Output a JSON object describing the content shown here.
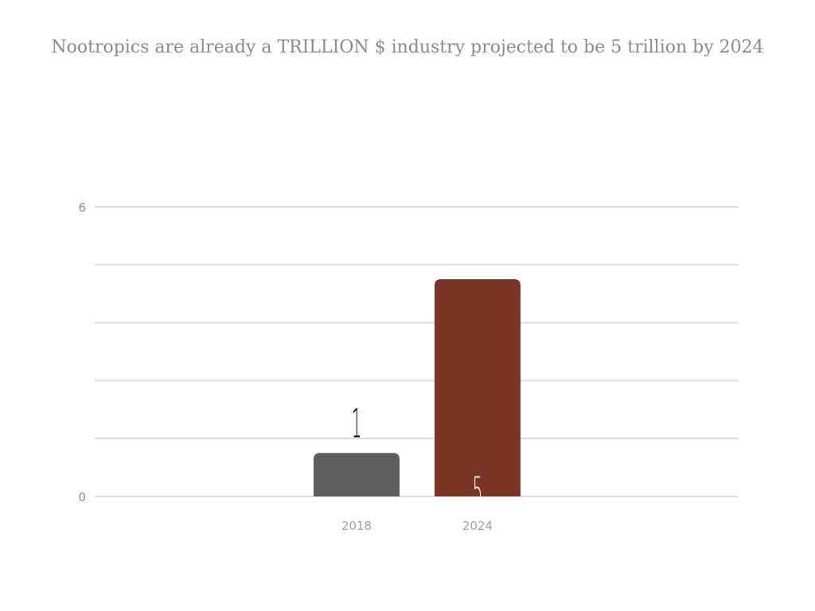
{
  "chart_data": {
    "type": "bar",
    "title": "Nootropics are already a TRILLION $ industry projected to be 5 trillion by 2024",
    "categories": [
      "2018",
      "2024"
    ],
    "values": [
      1,
      5
    ],
    "bar_heights": [
      0.9,
      4.5
    ],
    "bar_colors": [
      "#5e5e5e",
      "#7a3526"
    ],
    "data_label_colors": [
      "#000000",
      "#ffffff"
    ],
    "data_label_position": [
      "above",
      "inside"
    ],
    "ylim": [
      0,
      6
    ],
    "ytick_labels": [
      "0",
      "6"
    ],
    "gridlines": 6,
    "grid": true,
    "xlabel": "",
    "ylabel": ""
  }
}
